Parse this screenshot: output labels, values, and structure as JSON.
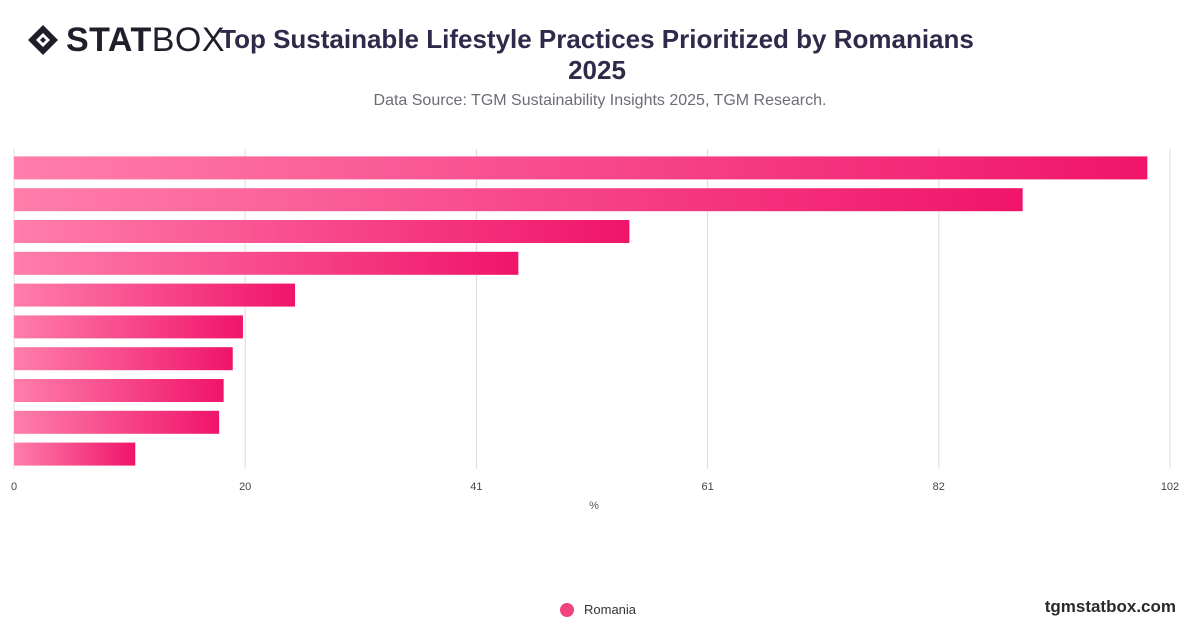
{
  "brand": {
    "logo_bold": "STAT",
    "logo_light": "BOX",
    "site": "tgmstatbox.com"
  },
  "header": {
    "title": "Top Sustainable Lifestyle Practices Prioritized by Romanians 2025",
    "subtitle": "Data Source: TGM Sustainability Insights 2025, TGM Research."
  },
  "colors": {
    "bar_start": "#ff7eab",
    "bar_end": "#f0146a",
    "grid": "#dddddd",
    "text": "#333333"
  },
  "chart_data": {
    "type": "bar",
    "orientation": "horizontal",
    "title": "Top Sustainable Lifestyle Practices Prioritized by Romanians 2025",
    "subtitle": "Data Source: TGM Sustainability Insights 2025, TGM Research.",
    "xlabel": "%",
    "ylabel": "",
    "xlim": [
      0,
      102
    ],
    "x_ticks": [
      "0",
      "20",
      "41",
      "61",
      "82",
      "102"
    ],
    "x_tick_values": [
      0,
      20.4,
      40.8,
      61.2,
      81.6,
      102
    ],
    "categories": [
      "",
      "",
      "",
      "",
      "",
      "",
      "",
      "",
      "",
      ""
    ],
    "series": [
      {
        "name": "Romania",
        "values": [
          100,
          89,
          54.3,
          44.5,
          24.8,
          20.2,
          19.3,
          18.5,
          18.1,
          10.7
        ]
      }
    ],
    "grid": true,
    "legend": "bottom-center"
  }
}
